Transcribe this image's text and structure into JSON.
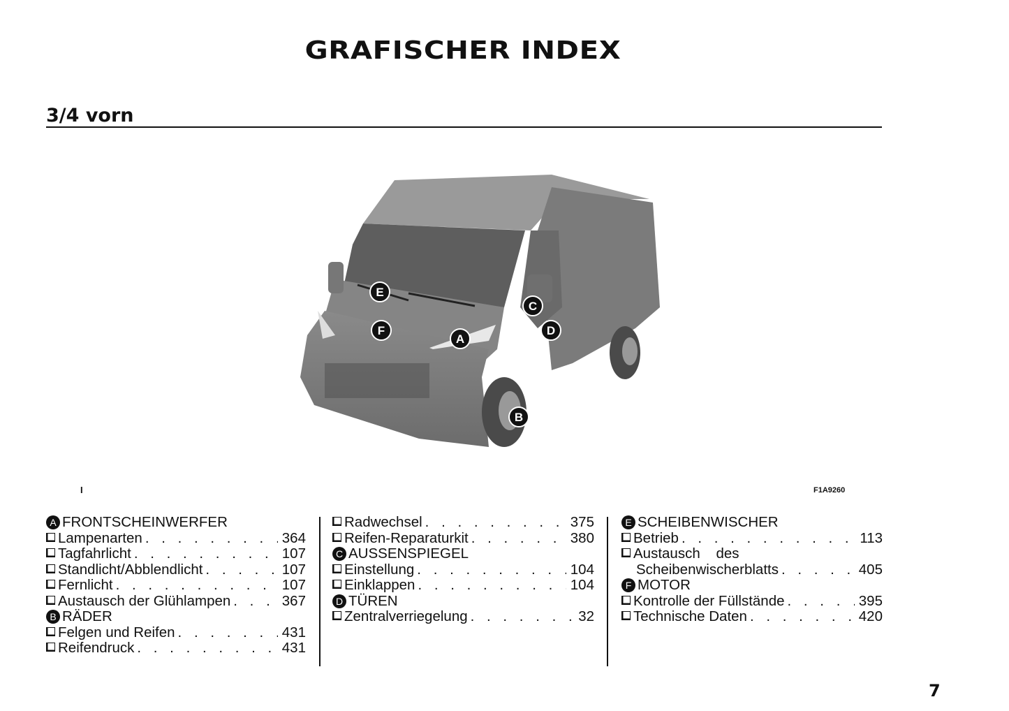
{
  "title": "GRAFISCHER INDEX",
  "section": "3/4 vorn",
  "figure": {
    "marker": "I",
    "code": "F1A9260",
    "callouts": [
      "A",
      "B",
      "C",
      "D",
      "E",
      "F"
    ]
  },
  "columns": [
    [
      {
        "letter": "A",
        "heading": "FRONTSCHEINWERFER",
        "items": [
          {
            "label": "Lampenarten",
            "page": "364"
          },
          {
            "label": "Tagfahrlicht",
            "page": "107"
          },
          {
            "label": "Standlicht/Abblendlicht",
            "page": "107"
          },
          {
            "label": "Fernlicht",
            "page": "107"
          },
          {
            "label": "Austausch der Glühlampen",
            "page": "367"
          }
        ]
      },
      {
        "letter": "B",
        "heading": "RÄDER",
        "items": [
          {
            "label": "Felgen und Reifen",
            "page": "431"
          },
          {
            "label": "Reifendruck",
            "page": "431"
          }
        ]
      }
    ],
    [
      {
        "letter": "",
        "heading": "",
        "items": [
          {
            "label": "Radwechsel",
            "page": "375"
          },
          {
            "label": "Reifen-Reparaturkit",
            "page": "380"
          }
        ]
      },
      {
        "letter": "C",
        "heading": "AUSSENSPIEGEL",
        "items": [
          {
            "label": "Einstellung",
            "page": "104"
          },
          {
            "label": "Einklappen",
            "page": "104"
          }
        ]
      },
      {
        "letter": "D",
        "heading": "TÜREN",
        "items": [
          {
            "label": "Zentralverriegelung",
            "page": "32"
          }
        ]
      }
    ],
    [
      {
        "letter": "E",
        "heading": "SCHEIBENWISCHER",
        "items": [
          {
            "label": "Betrieb",
            "page": "113"
          },
          {
            "label": "Austausch    des",
            "label2": "Scheibenwischerblatts",
            "page": "405"
          }
        ]
      },
      {
        "letter": "F",
        "heading": "MOTOR",
        "items": [
          {
            "label": "Kontrolle der Füllstände",
            "page": "395"
          },
          {
            "label": "Technische Daten",
            "page": "420"
          }
        ]
      }
    ]
  ],
  "page_number": "7"
}
